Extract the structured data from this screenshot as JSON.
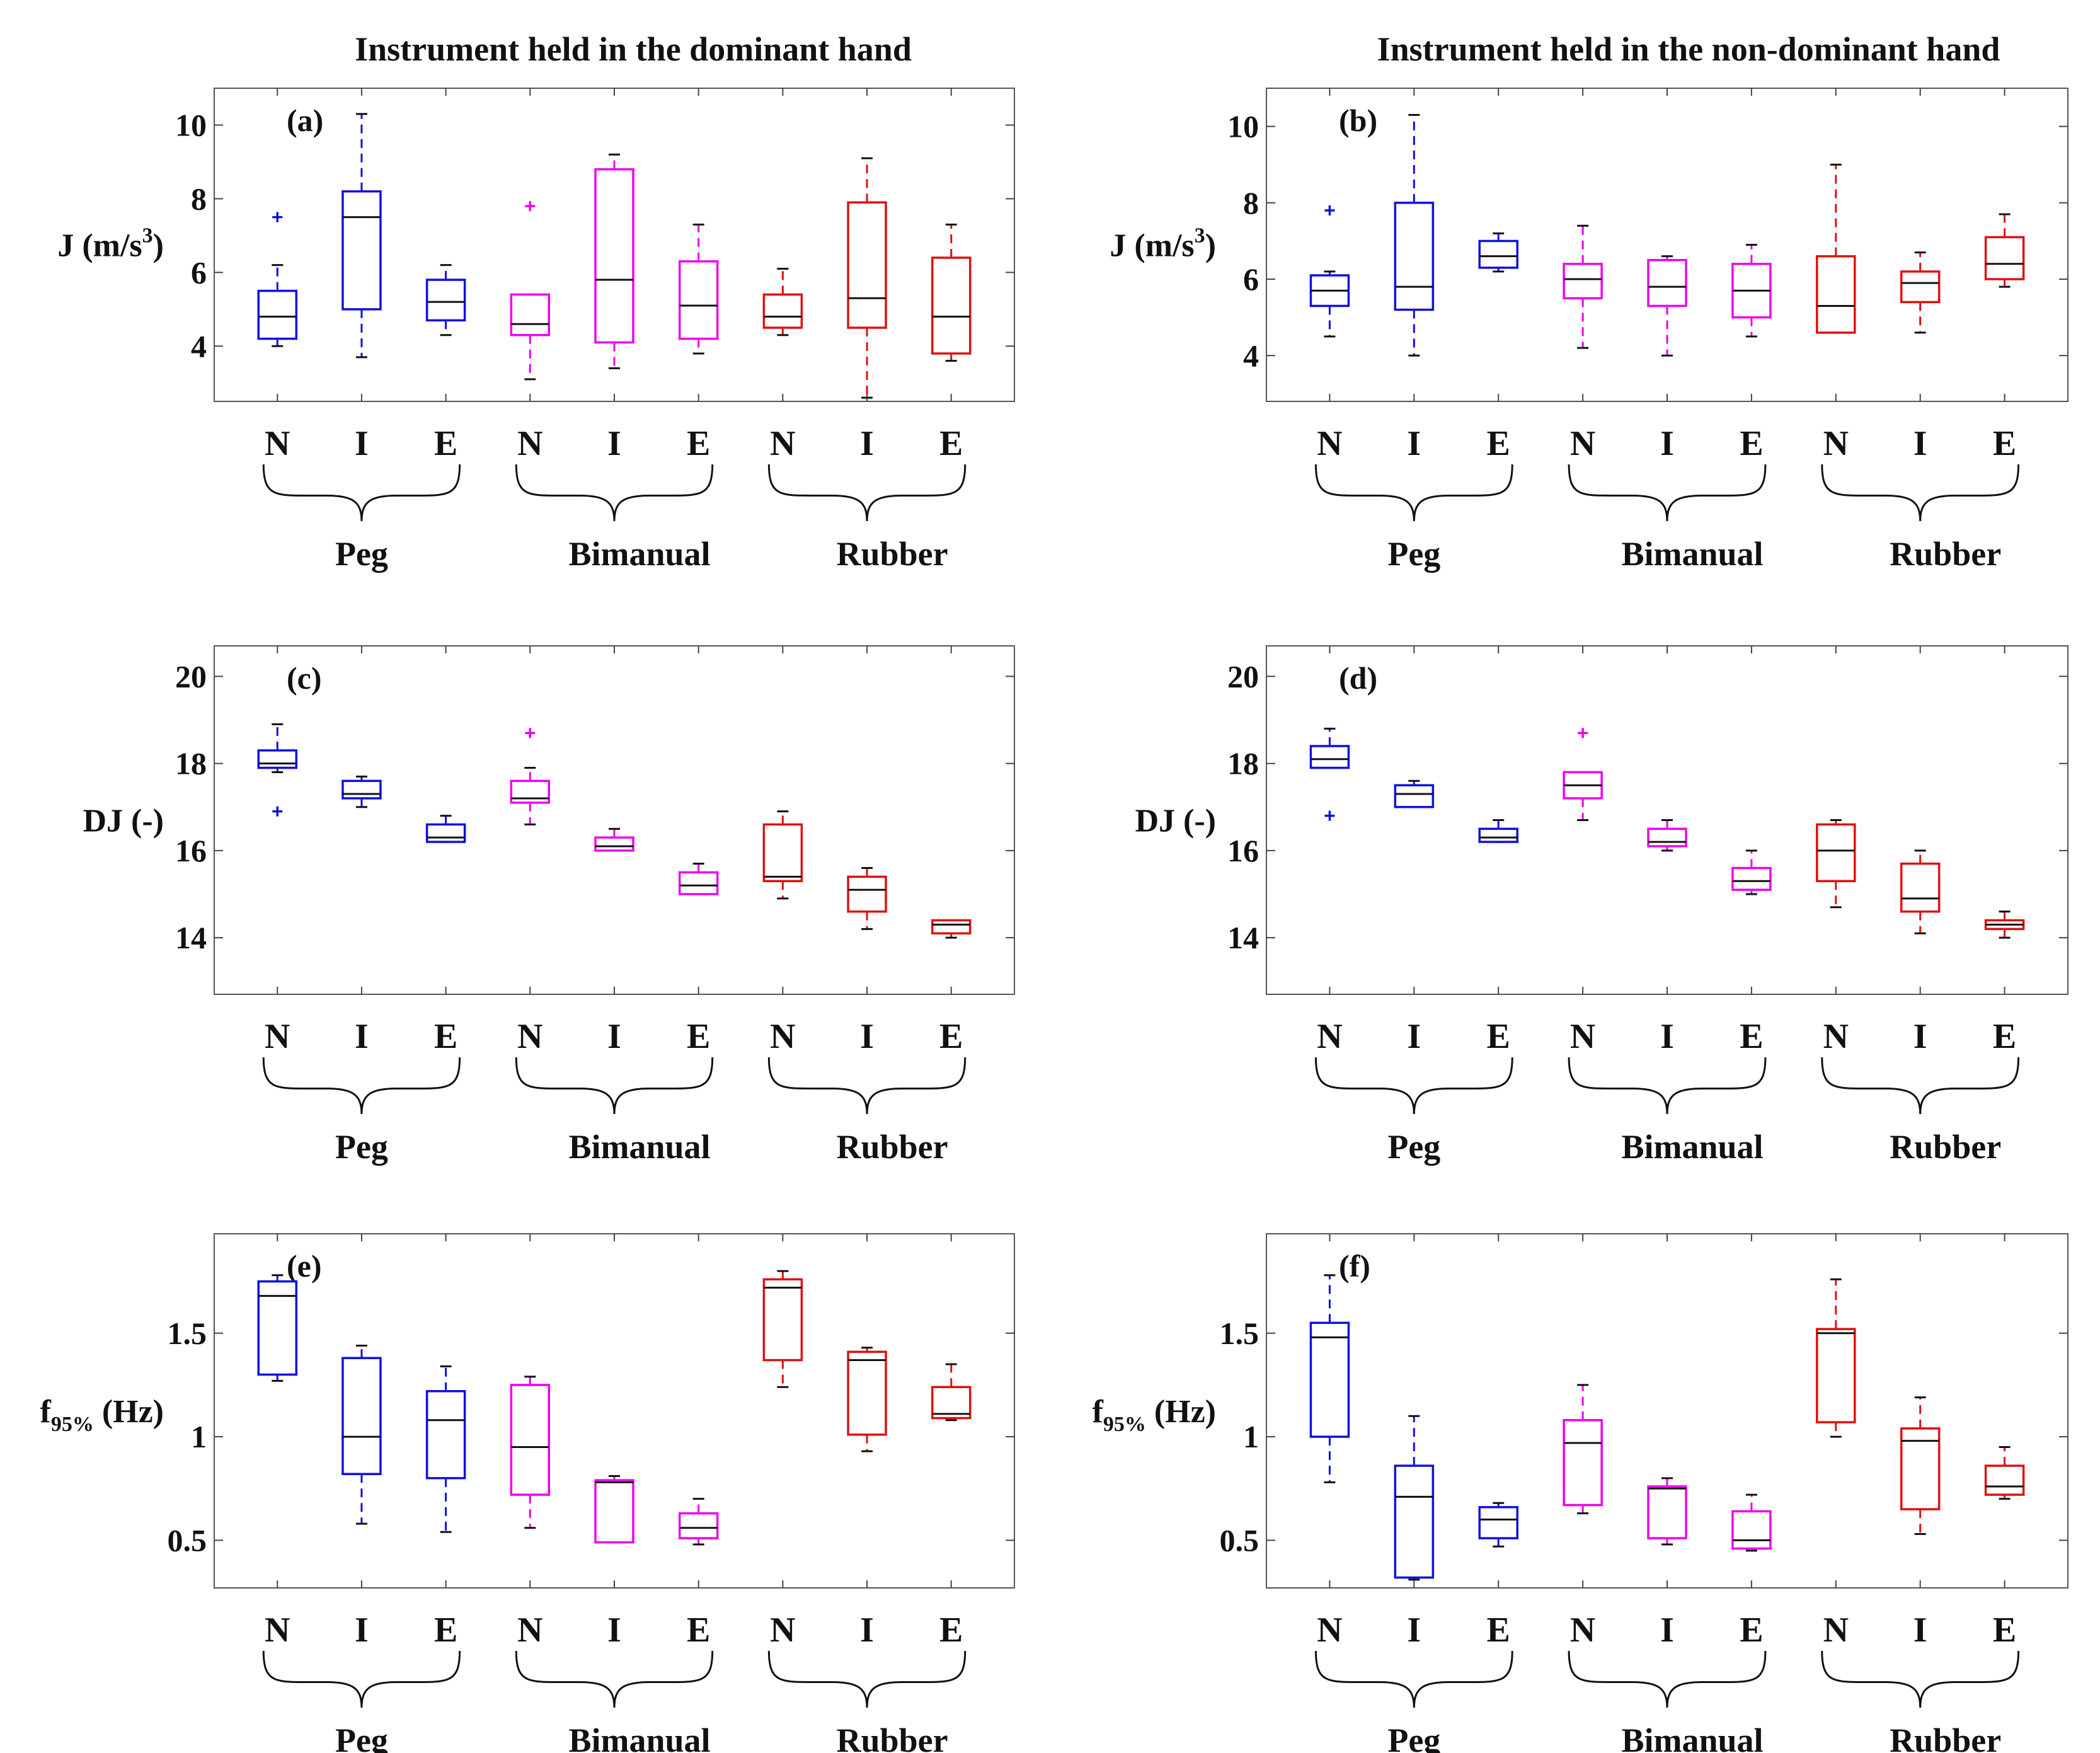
{
  "figure": {
    "column_titles": [
      "Instrument held in the dominant hand",
      "Instrument held in the non-dominant hand"
    ],
    "category_labels": [
      "N",
      "I",
      "E",
      "N",
      "I",
      "E",
      "N",
      "I",
      "E"
    ],
    "group_labels": [
      "Peg",
      "Bimanual",
      "Rubber"
    ],
    "group_colors": {
      "Peg": "#1010e0",
      "Bimanual": "#ee00ee",
      "Rubber": "#e01010"
    }
  },
  "chart_data": [
    {
      "type": "boxplot",
      "panel": "(a)",
      "ylabel": "J (m/s",
      "ylabel_sup": "3",
      "ylabel_tail": ")",
      "ylim": [
        2.5,
        11
      ],
      "yticks": [
        4,
        6,
        8,
        10
      ],
      "groups": [
        "Peg",
        "Peg",
        "Peg",
        "Bimanual",
        "Bimanual",
        "Bimanual",
        "Rubber",
        "Rubber",
        "Rubber"
      ],
      "boxes": [
        {
          "category": "N",
          "whisker_low": 4.0,
          "q1": 4.2,
          "median": 4.8,
          "q3": 5.5,
          "whisker_high": 6.2,
          "outliers": [
            7.5
          ]
        },
        {
          "category": "I",
          "whisker_low": 3.7,
          "q1": 5.0,
          "median": 7.5,
          "q3": 8.2,
          "whisker_high": 10.3,
          "outliers": []
        },
        {
          "category": "E",
          "whisker_low": 4.3,
          "q1": 4.7,
          "median": 5.2,
          "q3": 5.8,
          "whisker_high": 6.2,
          "outliers": []
        },
        {
          "category": "N",
          "whisker_low": 3.1,
          "q1": 4.3,
          "median": 4.6,
          "q3": 5.4,
          "whisker_high": 5.4,
          "outliers": [
            7.8
          ]
        },
        {
          "category": "I",
          "whisker_low": 3.4,
          "q1": 4.1,
          "median": 5.8,
          "q3": 8.8,
          "whisker_high": 9.2,
          "outliers": []
        },
        {
          "category": "E",
          "whisker_low": 3.8,
          "q1": 4.2,
          "median": 5.1,
          "q3": 6.3,
          "whisker_high": 7.3,
          "outliers": []
        },
        {
          "category": "N",
          "whisker_low": 4.3,
          "q1": 4.5,
          "median": 4.8,
          "q3": 5.4,
          "whisker_high": 6.1,
          "outliers": []
        },
        {
          "category": "I",
          "whisker_low": 2.6,
          "q1": 4.5,
          "median": 5.3,
          "q3": 7.9,
          "whisker_high": 9.1,
          "outliers": []
        },
        {
          "category": "E",
          "whisker_low": 3.6,
          "q1": 3.8,
          "median": 4.8,
          "q3": 6.4,
          "whisker_high": 7.3,
          "outliers": []
        }
      ]
    },
    {
      "type": "boxplot",
      "panel": "(b)",
      "ylabel": "J (m/s",
      "ylabel_sup": "3",
      "ylabel_tail": ")",
      "ylim": [
        2.8,
        11
      ],
      "yticks": [
        4,
        6,
        8,
        10
      ],
      "groups": [
        "Peg",
        "Peg",
        "Peg",
        "Bimanual",
        "Bimanual",
        "Bimanual",
        "Rubber",
        "Rubber",
        "Rubber"
      ],
      "boxes": [
        {
          "category": "N",
          "whisker_low": 4.5,
          "q1": 5.3,
          "median": 5.7,
          "q3": 6.1,
          "whisker_high": 6.2,
          "outliers": [
            7.8
          ]
        },
        {
          "category": "I",
          "whisker_low": 4.0,
          "q1": 5.2,
          "median": 5.8,
          "q3": 8.0,
          "whisker_high": 10.3,
          "outliers": []
        },
        {
          "category": "E",
          "whisker_low": 6.2,
          "q1": 6.3,
          "median": 6.6,
          "q3": 7.0,
          "whisker_high": 7.2,
          "outliers": []
        },
        {
          "category": "N",
          "whisker_low": 4.2,
          "q1": 5.5,
          "median": 6.0,
          "q3": 6.4,
          "whisker_high": 7.4,
          "outliers": []
        },
        {
          "category": "I",
          "whisker_low": 4.0,
          "q1": 5.3,
          "median": 5.8,
          "q3": 6.5,
          "whisker_high": 6.6,
          "outliers": []
        },
        {
          "category": "E",
          "whisker_low": 4.5,
          "q1": 5.0,
          "median": 5.7,
          "q3": 6.4,
          "whisker_high": 6.9,
          "outliers": []
        },
        {
          "category": "N",
          "whisker_low": 4.6,
          "q1": 4.6,
          "median": 5.3,
          "q3": 6.6,
          "whisker_high": 9.0,
          "outliers": []
        },
        {
          "category": "I",
          "whisker_low": 4.6,
          "q1": 5.4,
          "median": 5.9,
          "q3": 6.2,
          "whisker_high": 6.7,
          "outliers": []
        },
        {
          "category": "E",
          "whisker_low": 5.8,
          "q1": 6.0,
          "median": 6.4,
          "q3": 7.1,
          "whisker_high": 7.7,
          "outliers": []
        }
      ]
    },
    {
      "type": "boxplot",
      "panel": "(c)",
      "ylabel": "DJ (-)",
      "ylim": [
        12.7,
        20.7
      ],
      "yticks": [
        14,
        16,
        18,
        20
      ],
      "groups": [
        "Peg",
        "Peg",
        "Peg",
        "Bimanual",
        "Bimanual",
        "Bimanual",
        "Rubber",
        "Rubber",
        "Rubber"
      ],
      "boxes": [
        {
          "category": "N",
          "whisker_low": 17.8,
          "q1": 17.9,
          "median": 18.0,
          "q3": 18.3,
          "whisker_high": 18.9,
          "outliers": [
            16.9
          ]
        },
        {
          "category": "I",
          "whisker_low": 17.0,
          "q1": 17.2,
          "median": 17.3,
          "q3": 17.6,
          "whisker_high": 17.7,
          "outliers": []
        },
        {
          "category": "E",
          "whisker_low": 16.2,
          "q1": 16.2,
          "median": 16.3,
          "q3": 16.6,
          "whisker_high": 16.8,
          "outliers": []
        },
        {
          "category": "N",
          "whisker_low": 16.6,
          "q1": 17.1,
          "median": 17.2,
          "q3": 17.6,
          "whisker_high": 17.9,
          "outliers": [
            18.7
          ]
        },
        {
          "category": "I",
          "whisker_low": 16.0,
          "q1": 16.0,
          "median": 16.1,
          "q3": 16.3,
          "whisker_high": 16.5,
          "outliers": []
        },
        {
          "category": "E",
          "whisker_low": 15.0,
          "q1": 15.0,
          "median": 15.2,
          "q3": 15.5,
          "whisker_high": 15.7,
          "outliers": []
        },
        {
          "category": "N",
          "whisker_low": 14.9,
          "q1": 15.3,
          "median": 15.4,
          "q3": 16.6,
          "whisker_high": 16.9,
          "outliers": []
        },
        {
          "category": "I",
          "whisker_low": 14.2,
          "q1": 14.6,
          "median": 15.1,
          "q3": 15.4,
          "whisker_high": 15.6,
          "outliers": []
        },
        {
          "category": "E",
          "whisker_low": 14.0,
          "q1": 14.1,
          "median": 14.3,
          "q3": 14.4,
          "whisker_high": 14.4,
          "outliers": []
        }
      ]
    },
    {
      "type": "boxplot",
      "panel": "(d)",
      "ylabel": "DJ (-)",
      "ylim": [
        12.7,
        20.7
      ],
      "yticks": [
        14,
        16,
        18,
        20
      ],
      "groups": [
        "Peg",
        "Peg",
        "Peg",
        "Bimanual",
        "Bimanual",
        "Bimanual",
        "Rubber",
        "Rubber",
        "Rubber"
      ],
      "boxes": [
        {
          "category": "N",
          "whisker_low": 17.9,
          "q1": 17.9,
          "median": 18.1,
          "q3": 18.4,
          "whisker_high": 18.8,
          "outliers": [
            16.8
          ]
        },
        {
          "category": "I",
          "whisker_low": 17.0,
          "q1": 17.0,
          "median": 17.3,
          "q3": 17.5,
          "whisker_high": 17.6,
          "outliers": []
        },
        {
          "category": "E",
          "whisker_low": 16.2,
          "q1": 16.2,
          "median": 16.3,
          "q3": 16.5,
          "whisker_high": 16.7,
          "outliers": []
        },
        {
          "category": "N",
          "whisker_low": 16.7,
          "q1": 17.2,
          "median": 17.5,
          "q3": 17.8,
          "whisker_high": 17.8,
          "outliers": [
            18.7
          ]
        },
        {
          "category": "I",
          "whisker_low": 16.0,
          "q1": 16.1,
          "median": 16.2,
          "q3": 16.5,
          "whisker_high": 16.7,
          "outliers": []
        },
        {
          "category": "E",
          "whisker_low": 15.0,
          "q1": 15.1,
          "median": 15.3,
          "q3": 15.6,
          "whisker_high": 16.0,
          "outliers": []
        },
        {
          "category": "N",
          "whisker_low": 14.7,
          "q1": 15.3,
          "median": 16.0,
          "q3": 16.6,
          "whisker_high": 16.7,
          "outliers": []
        },
        {
          "category": "I",
          "whisker_low": 14.1,
          "q1": 14.6,
          "median": 14.9,
          "q3": 15.7,
          "whisker_high": 16.0,
          "outliers": []
        },
        {
          "category": "E",
          "whisker_low": 14.0,
          "q1": 14.2,
          "median": 14.3,
          "q3": 14.4,
          "whisker_high": 14.6,
          "outliers": []
        }
      ]
    },
    {
      "type": "boxplot",
      "panel": "(e)",
      "ylabel": "f",
      "ylabel_sub": "95%",
      "ylabel_tail": " (Hz)",
      "ylim": [
        0.27,
        1.98
      ],
      "yticks": [
        0.5,
        1,
        1.5
      ],
      "ytick_labels": [
        "0.5",
        "1",
        "1.5"
      ],
      "groups": [
        "Peg",
        "Peg",
        "Peg",
        "Bimanual",
        "Bimanual",
        "Bimanual",
        "Rubber",
        "Rubber",
        "Rubber"
      ],
      "boxes": [
        {
          "category": "N",
          "whisker_low": 1.27,
          "q1": 1.3,
          "median": 1.68,
          "q3": 1.75,
          "whisker_high": 1.78,
          "outliers": []
        },
        {
          "category": "I",
          "whisker_low": 0.58,
          "q1": 0.82,
          "median": 1.0,
          "q3": 1.38,
          "whisker_high": 1.44,
          "outliers": []
        },
        {
          "category": "E",
          "whisker_low": 0.54,
          "q1": 0.8,
          "median": 1.08,
          "q3": 1.22,
          "whisker_high": 1.34,
          "outliers": []
        },
        {
          "category": "N",
          "whisker_low": 0.56,
          "q1": 0.72,
          "median": 0.95,
          "q3": 1.25,
          "whisker_high": 1.29,
          "outliers": []
        },
        {
          "category": "I",
          "whisker_low": 0.49,
          "q1": 0.49,
          "median": 0.78,
          "q3": 0.79,
          "whisker_high": 0.81,
          "outliers": []
        },
        {
          "category": "E",
          "whisker_low": 0.48,
          "q1": 0.51,
          "median": 0.56,
          "q3": 0.63,
          "whisker_high": 0.7,
          "outliers": []
        },
        {
          "category": "N",
          "whisker_low": 1.24,
          "q1": 1.37,
          "median": 1.72,
          "q3": 1.76,
          "whisker_high": 1.8,
          "outliers": []
        },
        {
          "category": "I",
          "whisker_low": 0.93,
          "q1": 1.01,
          "median": 1.37,
          "q3": 1.41,
          "whisker_high": 1.43,
          "outliers": []
        },
        {
          "category": "E",
          "whisker_low": 1.08,
          "q1": 1.09,
          "median": 1.11,
          "q3": 1.24,
          "whisker_high": 1.35,
          "outliers": []
        }
      ]
    },
    {
      "type": "boxplot",
      "panel": "(f)",
      "ylabel": "f",
      "ylabel_sub": "95%",
      "ylabel_tail": " (Hz)",
      "ylim": [
        0.27,
        1.98
      ],
      "yticks": [
        0.5,
        1,
        1.5
      ],
      "ytick_labels": [
        "0.5",
        "1",
        "1.5"
      ],
      "groups": [
        "Peg",
        "Peg",
        "Peg",
        "Bimanual",
        "Bimanual",
        "Bimanual",
        "Rubber",
        "Rubber",
        "Rubber"
      ],
      "boxes": [
        {
          "category": "N",
          "whisker_low": 0.78,
          "q1": 1.0,
          "median": 1.48,
          "q3": 1.55,
          "whisker_high": 1.78,
          "outliers": []
        },
        {
          "category": "I",
          "whisker_low": 0.31,
          "q1": 0.32,
          "median": 0.71,
          "q3": 0.86,
          "whisker_high": 1.1,
          "outliers": []
        },
        {
          "category": "E",
          "whisker_low": 0.47,
          "q1": 0.51,
          "median": 0.6,
          "q3": 0.66,
          "whisker_high": 0.68,
          "outliers": []
        },
        {
          "category": "N",
          "whisker_low": 0.63,
          "q1": 0.67,
          "median": 0.97,
          "q3": 1.08,
          "whisker_high": 1.25,
          "outliers": []
        },
        {
          "category": "I",
          "whisker_low": 0.48,
          "q1": 0.51,
          "median": 0.75,
          "q3": 0.76,
          "whisker_high": 0.8,
          "outliers": []
        },
        {
          "category": "E",
          "whisker_low": 0.45,
          "q1": 0.46,
          "median": 0.5,
          "q3": 0.64,
          "whisker_high": 0.72,
          "outliers": []
        },
        {
          "category": "N",
          "whisker_low": 1.0,
          "q1": 1.07,
          "median": 1.5,
          "q3": 1.52,
          "whisker_high": 1.76,
          "outliers": []
        },
        {
          "category": "I",
          "whisker_low": 0.53,
          "q1": 0.65,
          "median": 0.98,
          "q3": 1.04,
          "whisker_high": 1.19,
          "outliers": []
        },
        {
          "category": "E",
          "whisker_low": 0.7,
          "q1": 0.72,
          "median": 0.76,
          "q3": 0.86,
          "whisker_high": 0.95,
          "outliers": []
        }
      ]
    }
  ]
}
